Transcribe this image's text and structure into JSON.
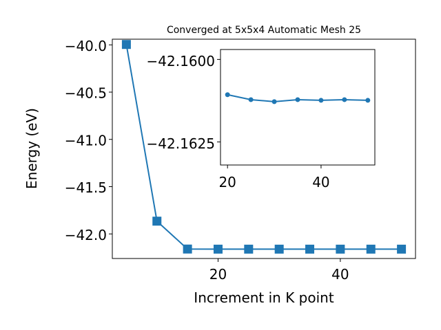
{
  "chart_data": [
    {
      "type": "line",
      "title": "Converged at 5x5x4 Automatic Mesh 25",
      "xlabel": "Increment in K point",
      "ylabel": "Energy (eV)",
      "xlim": [
        2.7,
        52.3
      ],
      "ylim": [
        -42.26,
        -39.94
      ],
      "xticks": [
        20,
        40
      ],
      "xtick_labels": [
        "20",
        "40"
      ],
      "yticks": [
        -40.0,
        -40.5,
        -41.0,
        -41.5,
        -42.0
      ],
      "ytick_labels": [
        "−40.0",
        "−40.5",
        "−41.0",
        "−41.5",
        "−42.0"
      ],
      "marker": "square",
      "color": "#1f77b4",
      "series": [
        {
          "x": [
            5,
            10,
            15,
            20,
            25,
            30,
            35,
            40,
            45,
            50
          ],
          "values": [
            -39.996,
            -41.865,
            -42.16,
            -42.161,
            -42.161,
            -42.161,
            -42.161,
            -42.161,
            -42.161,
            -42.161
          ]
        }
      ]
    },
    {
      "type": "line",
      "title": "",
      "inset": true,
      "xlim": [
        18.5,
        51.5
      ],
      "ylim": [
        -42.1632,
        -42.1597
      ],
      "xticks": [
        20,
        40
      ],
      "xtick_labels": [
        "20",
        "40"
      ],
      "yticks": [
        -42.1625,
        -42.16
      ],
      "ytick_labels": [
        "−42.1625",
        "−42.1600"
      ],
      "marker": "circle",
      "color": "#1f77b4",
      "series": [
        {
          "x": [
            20,
            25,
            30,
            35,
            40,
            45,
            50
          ],
          "values": [
            -42.16107,
            -42.16122,
            -42.16128,
            -42.16122,
            -42.16124,
            -42.16122,
            -42.16124
          ]
        }
      ]
    }
  ]
}
